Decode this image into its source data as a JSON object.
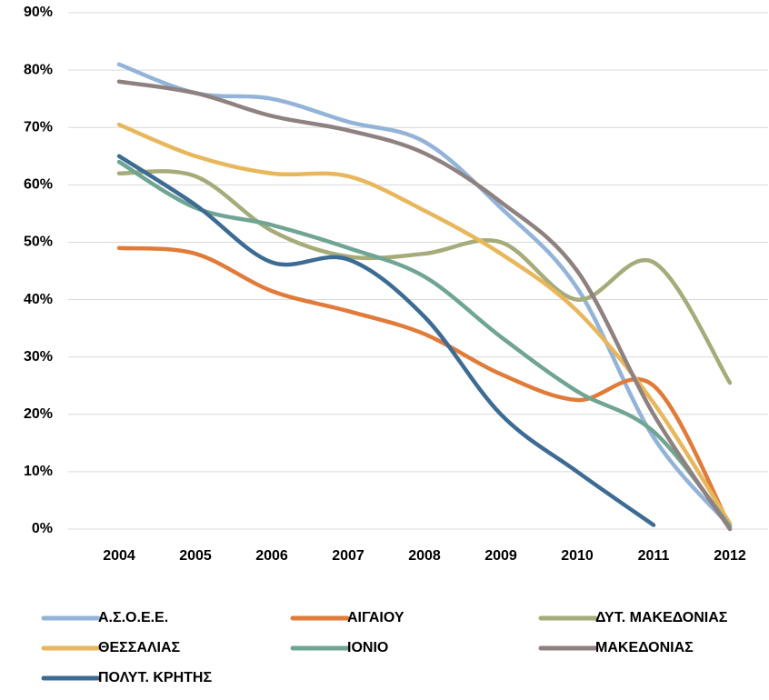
{
  "chart_data": {
    "type": "line",
    "categories": [
      "2004",
      "2005",
      "2006",
      "2007",
      "2008",
      "2009",
      "2010",
      "2011",
      "2012"
    ],
    "series": [
      {
        "name": "Α.Σ.Ο.Ε.Ε.",
        "color": "#93b3d9",
        "values": [
          81,
          76,
          75,
          71,
          67.5,
          56,
          42,
          16,
          0.5
        ]
      },
      {
        "name": "ΑΙΓΑΙΟΥ",
        "color": "#e07b39",
        "values": [
          49,
          48,
          41.5,
          38,
          34,
          27,
          22.5,
          25,
          0.5
        ]
      },
      {
        "name": "ΔΥΤ. ΜΑΚΕΔΟΝΙΑΣ",
        "color": "#a6ab7a",
        "values": [
          62,
          61.5,
          52,
          47.5,
          48,
          50,
          40,
          46.5,
          25.5
        ]
      },
      {
        "name": "ΘΕΣΣΑΛΙΑΣ",
        "color": "#e8b75c",
        "values": [
          70.5,
          65,
          62,
          61.5,
          55.5,
          48,
          38,
          22,
          1
        ]
      },
      {
        "name": "ΙΟΝΙΟ",
        "color": "#70a593",
        "values": [
          64,
          56,
          53,
          49,
          44,
          33.5,
          24,
          17,
          0.5
        ]
      },
      {
        "name": "ΜΑΚΕΔΟΝΙΑΣ",
        "color": "#8e8180",
        "values": [
          78,
          76,
          72,
          69.5,
          65.5,
          57,
          45,
          20,
          0
        ]
      },
      {
        "name": "ΠΟΛΥΤ. ΚΡΗΤΗΣ",
        "color": "#3c6b94",
        "values": [
          65,
          56.5,
          46.5,
          47,
          37,
          20,
          10,
          0.7,
          null
        ]
      }
    ],
    "ylim": [
      0,
      90
    ],
    "yticks": [
      {
        "value": 0,
        "label": "0%"
      },
      {
        "value": 10,
        "label": "10%"
      },
      {
        "value": 20,
        "label": "20%"
      },
      {
        "value": 30,
        "label": "30%"
      },
      {
        "value": 40,
        "label": "40%"
      },
      {
        "value": 50,
        "label": "50%"
      },
      {
        "value": 60,
        "label": "60%"
      },
      {
        "value": 70,
        "label": "70%"
      },
      {
        "value": 80,
        "label": "80%"
      },
      {
        "value": 90,
        "label": "90%"
      }
    ],
    "grid": true,
    "smooth": true,
    "legend": "bottom"
  }
}
